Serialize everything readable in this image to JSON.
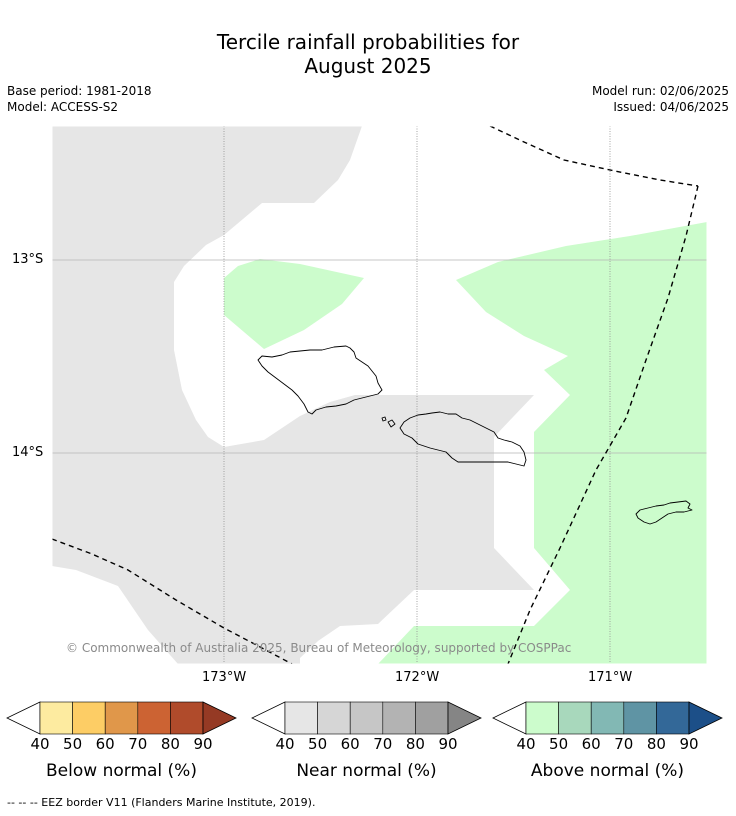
{
  "title": {
    "line1": "Tercile rainfall probabilities for",
    "line2": "August 2025"
  },
  "info": {
    "base_period": "Base period: 1981-2018",
    "model": "Model: ACCESS-S2",
    "model_run": "Model run: 02/06/2025",
    "issued": "Issued: 04/06/2025"
  },
  "map": {
    "lat_labels": [
      "13°S",
      "14°S"
    ],
    "lon_labels": [
      "173°W",
      "172°W",
      "171°W"
    ],
    "copyright": "© Commonwealth of Australia 2025, Bureau of Meteorology, supported by COSPPac",
    "colors": {
      "below_normal_40": "#e6e6e6",
      "above_normal_40": "#ccfccc",
      "land_outline": "#000000",
      "gridline": "#999999",
      "eez_border": "#000000"
    }
  },
  "legend": {
    "below": {
      "label": "Below normal (%)",
      "ticks": [
        "40",
        "50",
        "60",
        "70",
        "80",
        "90"
      ],
      "colors": [
        "#fdeba0",
        "#fdcd65",
        "#e0974a",
        "#cc6333",
        "#b04b2b",
        "#953a24"
      ]
    },
    "near": {
      "label": "Near normal (%)",
      "ticks": [
        "40",
        "50",
        "60",
        "70",
        "80",
        "90"
      ],
      "colors": [
        "#e6e6e6",
        "#d6d6d6",
        "#c6c6c6",
        "#b3b3b3",
        "#a0a0a0",
        "#858585"
      ]
    },
    "above": {
      "label": "Above normal (%)",
      "ticks": [
        "40",
        "50",
        "60",
        "70",
        "80",
        "90"
      ],
      "colors": [
        "#ccfccc",
        "#a8d8bc",
        "#82b8b4",
        "#5f94a4",
        "#336898",
        "#1c4f88"
      ]
    }
  },
  "footnote": "--  --  -- EEZ border V11 (Flanders Marine Institute, 2019)."
}
